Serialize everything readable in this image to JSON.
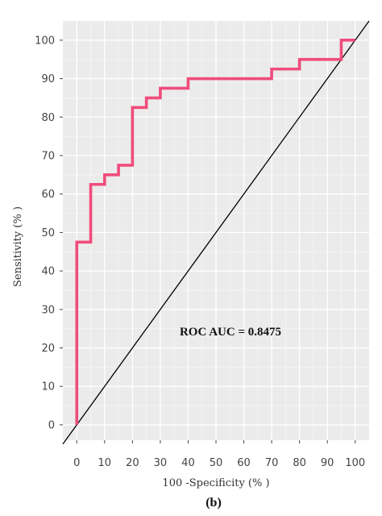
{
  "chart_data": {
    "type": "line",
    "title": "",
    "xlabel": "100 -Specificity (% )",
    "ylabel": "Sensitivity (% )",
    "xlim": [
      -5,
      105
    ],
    "ylim": [
      -4,
      105
    ],
    "x_ticks": [
      0,
      10,
      20,
      30,
      40,
      50,
      60,
      70,
      80,
      90,
      100
    ],
    "y_ticks": [
      0,
      10,
      20,
      30,
      40,
      50,
      60,
      70,
      80,
      90,
      100
    ],
    "grid": true,
    "series": [
      {
        "name": "",
        "color": "#f04c7c",
        "x": [
          0,
          0,
          5,
          5,
          10,
          10,
          15,
          15,
          20,
          20,
          25,
          25,
          30,
          30,
          40,
          40,
          70,
          70,
          80,
          80,
          95,
          95,
          100
        ],
        "y": [
          0,
          47.5,
          47.5,
          62.5,
          62.5,
          65,
          65,
          67.5,
          67.5,
          82.5,
          82.5,
          85,
          85,
          87.5,
          87.5,
          90,
          90,
          92.5,
          92.5,
          95,
          95,
          100,
          100
        ]
      }
    ],
    "reference_line": {
      "x": [
        -5,
        105
      ],
      "y": [
        -5,
        105
      ],
      "color": "#000000"
    },
    "annotation": "ROC AUC = 0.8475",
    "caption": "(b)"
  }
}
